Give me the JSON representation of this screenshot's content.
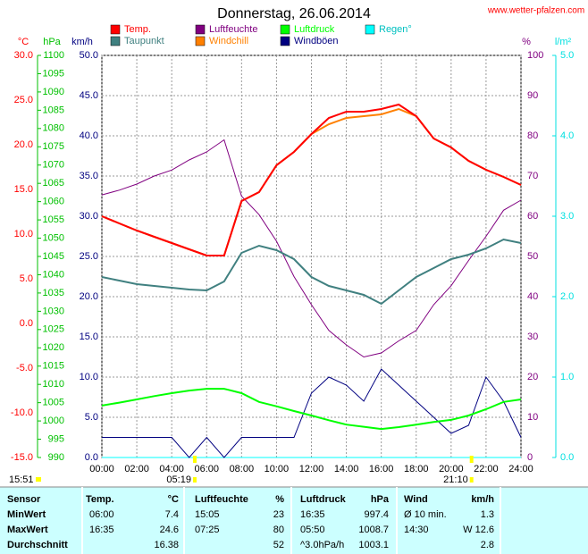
{
  "chart_data": {
    "type": "line",
    "title": "Donnerstag, 26.06.2014",
    "source": "www.wetter-pfalzen.com",
    "x": [
      0,
      1,
      2,
      3,
      4,
      5,
      6,
      7,
      8,
      9,
      10,
      11,
      12,
      13,
      14,
      15,
      16,
      17,
      18,
      19,
      20,
      21,
      22,
      23,
      24
    ],
    "xlim": [
      0,
      24
    ],
    "xticks": [
      {
        "value": 0,
        "label": "00:00"
      },
      {
        "value": 2,
        "label": "02:00"
      },
      {
        "value": 4,
        "label": "04:00"
      },
      {
        "value": 6,
        "label": "06:00"
      },
      {
        "value": 8,
        "label": "08:00"
      },
      {
        "value": 10,
        "label": "10:00"
      },
      {
        "value": 12,
        "label": "12:00"
      },
      {
        "value": 14,
        "label": "14:00"
      },
      {
        "value": 16,
        "label": "16:00"
      },
      {
        "value": 18,
        "label": "18:00"
      },
      {
        "value": 20,
        "label": "20:00"
      },
      {
        "value": 22,
        "label": "22:00"
      },
      {
        "value": 24,
        "label": "24:00"
      }
    ],
    "ylabel": "°C",
    "ycolor": "#ff0000",
    "ylim": [
      -15,
      30
    ],
    "yticks": [
      {
        "value": -15,
        "label": "-15.0"
      },
      {
        "value": -10,
        "label": "-10.0"
      },
      {
        "value": -5,
        "label": "-5.0"
      },
      {
        "value": 0,
        "label": "0.0"
      },
      {
        "value": 5,
        "label": "5.0"
      },
      {
        "value": 10,
        "label": "10.0"
      },
      {
        "value": 15,
        "label": "15.0"
      },
      {
        "value": 20,
        "label": "20.0"
      },
      {
        "value": 25,
        "label": "25.0"
      },
      {
        "value": 30,
        "label": "30.0"
      }
    ],
    "y2label": "hPa",
    "y2color": "#00c000",
    "y2lim": [
      990,
      1100
    ],
    "y2ticks": [
      990,
      995,
      1000,
      1005,
      1010,
      1015,
      1020,
      1025,
      1030,
      1035,
      1040,
      1045,
      1050,
      1055,
      1060,
      1065,
      1070,
      1075,
      1080,
      1085,
      1090,
      1095,
      1100
    ],
    "y3label": "km/h",
    "y3color": "#000080",
    "y3lim": [
      0,
      50
    ],
    "y3ticks": [
      {
        "value": 0,
        "label": "0.0"
      },
      {
        "value": 5,
        "label": "5.0"
      },
      {
        "value": 10,
        "label": "10.0"
      },
      {
        "value": 15,
        "label": "15.0"
      },
      {
        "value": 20,
        "label": "20.0"
      },
      {
        "value": 25,
        "label": "25.0"
      },
      {
        "value": 30,
        "label": "30.0"
      },
      {
        "value": 35,
        "label": "35.0"
      },
      {
        "value": 40,
        "label": "40.0"
      },
      {
        "value": 45,
        "label": "45.0"
      },
      {
        "value": 50,
        "label": "50.0"
      }
    ],
    "y4label": "%",
    "y4color": "#800080",
    "y4lim": [
      0,
      100
    ],
    "y4ticks": [
      0,
      10,
      20,
      30,
      40,
      50,
      60,
      70,
      80,
      90,
      100
    ],
    "y5label": "l/m²",
    "y5color": "#00e0e0",
    "y5lim": [
      0,
      5
    ],
    "y5ticks": [
      {
        "value": 0,
        "label": "0.0"
      },
      {
        "value": 1,
        "label": "1.0"
      },
      {
        "value": 2,
        "label": "2.0"
      },
      {
        "value": 3,
        "label": "3.0"
      },
      {
        "value": 4,
        "label": "4.0"
      },
      {
        "value": 5,
        "label": "5.0"
      }
    ],
    "grid": true,
    "series": [
      {
        "name": "Temp.",
        "color": "#ff0000",
        "axis": "y",
        "values": [
          12.0,
          11.2,
          10.4,
          9.7,
          9.0,
          8.3,
          7.6,
          7.6,
          13.7,
          14.7,
          17.7,
          19.2,
          21.2,
          23.0,
          23.7,
          23.7,
          24.0,
          24.5,
          23.2,
          20.7,
          19.7,
          18.2,
          17.2,
          16.4,
          15.5
        ]
      },
      {
        "name": "Taupunkt",
        "color": "#408080",
        "axis": "y",
        "values": [
          5.2,
          4.8,
          4.4,
          4.2,
          4.0,
          3.8,
          3.7,
          4.7,
          7.9,
          8.7,
          8.2,
          7.2,
          5.2,
          4.2,
          3.7,
          3.2,
          2.2,
          3.7,
          5.2,
          6.2,
          7.2,
          7.7,
          8.4,
          9.4,
          9.0
        ]
      },
      {
        "name": "Luftfeuchte",
        "color": "#800080",
        "axis": "y4",
        "values": [
          65.3,
          66.5,
          68,
          70,
          71.5,
          74,
          76,
          79,
          65,
          60.4,
          53.8,
          45,
          38,
          31.6,
          28,
          25,
          26,
          29,
          31.6,
          38,
          42.7,
          49,
          55,
          61.5,
          64
        ]
      },
      {
        "name": "Windchill",
        "color": "#ff8000",
        "axis": "y",
        "values": [
          12.0,
          11.2,
          10.4,
          9.7,
          9.0,
          8.3,
          7.6,
          7.6,
          13.7,
          14.7,
          17.7,
          19.2,
          21.2,
          22.3,
          23.0,
          23.2,
          23.4,
          24.0,
          23.2,
          20.7,
          19.7,
          18.2,
          17.2,
          16.4,
          15.5
        ]
      },
      {
        "name": "Luftdruck",
        "color": "#00ff00",
        "axis": "y2",
        "values": [
          1004.2,
          1005.0,
          1005.9,
          1006.8,
          1007.6,
          1008.3,
          1008.8,
          1008.8,
          1007.6,
          1005.2,
          1004.0,
          1002.7,
          1001.5,
          1000.2,
          999.0,
          998.4,
          997.8,
          998.3,
          999.0,
          999.7,
          1000.3,
          1001.5,
          1003.2,
          1005.2,
          1005.9
        ]
      },
      {
        "name": "Windböen",
        "color": "#000080",
        "axis": "y3",
        "values": [
          2.5,
          2.5,
          2.5,
          2.5,
          2.5,
          0,
          2.5,
          0,
          2.5,
          2.5,
          2.5,
          2.5,
          8,
          10,
          9,
          7,
          11,
          9,
          7,
          5,
          3,
          4,
          10,
          7,
          2.5
        ]
      },
      {
        "name": "Regen°",
        "color": "#00ffff",
        "axis": "y5",
        "values": [
          0,
          0,
          0,
          0,
          0,
          0,
          0,
          0,
          0,
          0,
          0,
          0,
          0,
          0,
          0,
          0,
          0,
          0,
          0,
          0,
          0,
          0,
          0,
          0,
          0
        ]
      }
    ],
    "time": "15:51",
    "annotations": [
      {
        "text": "05:19",
        "x": 5.32
      },
      {
        "text": "21:10",
        "x": 21.17
      }
    ]
  },
  "table": {
    "header": [
      "Sensor",
      "Temp.",
      "°C",
      "Luftfeuchte",
      "%",
      "Luftdruck",
      "hPa",
      "Wind",
      "km/h"
    ],
    "rows": [
      [
        "MinWert",
        "06:00",
        "7.4",
        "15:05",
        "23",
        "16:35",
        "997.4",
        "Ø 10 min.",
        "1.3"
      ],
      [
        "MaxWert",
        "16:35",
        "24.6",
        "07:25",
        "80",
        "05:50",
        "1008.7",
        "14:30",
        "W 12.6"
      ],
      [
        "Durchschnitt",
        null,
        "16.38",
        null,
        "52",
        "^3.0hPa/h",
        "1003.1",
        null,
        "2.8"
      ]
    ]
  }
}
